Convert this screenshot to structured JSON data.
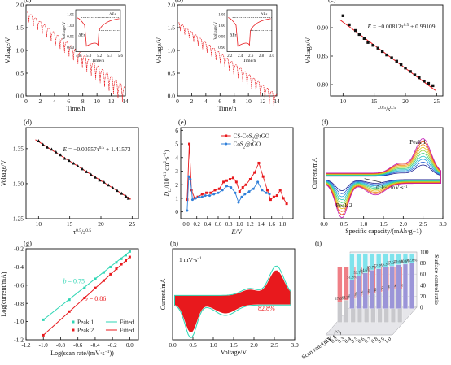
{
  "colors": {
    "red": "#e8191d",
    "teal": "#2fd6b4",
    "blue": "#2f7fd9",
    "black": "#111111",
    "cyan_bar": "#7fe3ec",
    "purple_bar": "#9b95d8",
    "pink_bar": "#ef7f86",
    "grey_bar": "#c8c8cc"
  },
  "chart_data": [
    {
      "panel": "(a)",
      "type": "line",
      "xlabel": "Time/h",
      "ylabel": "Voltage/V",
      "xlim": [
        0,
        14
      ],
      "ylim": [
        0,
        2.0
      ],
      "xticks": [
        0,
        2,
        4,
        6,
        8,
        10,
        12,
        14
      ],
      "yticks": [
        0.0,
        0.5,
        1.0,
        1.5,
        2.0
      ],
      "series": [
        {
          "pulse_count": 22,
          "start_V": 1.85,
          "end_V": 0.2,
          "drop_V": 0.42
        }
      ],
      "inset": {
        "xlabel": "Time/h",
        "ylabel": "Voltage/V",
        "xticks": [
          4.8,
          5.0,
          5.2,
          5.4,
          5.6
        ],
        "yticks": [
          0.9,
          0.95,
          1.0,
          1.05
        ],
        "xlim": [
          4.75,
          5.6
        ],
        "ylim": [
          0.88,
          1.07
        ],
        "annotations": [
          "ΔEτ",
          "ΔEs"
        ]
      }
    },
    {
      "panel": "(b)",
      "type": "line",
      "xlabel": "Time/h",
      "ylabel": "Voltage/V",
      "xlim": [
        0,
        14
      ],
      "ylim": [
        0,
        2.0
      ],
      "xticks": [
        0,
        2,
        4,
        6,
        8,
        10,
        12,
        14
      ],
      "yticks": [
        0.0,
        0.5,
        1.0,
        1.5,
        2.0
      ],
      "series": [
        {
          "pulse_count": 22,
          "start_V": 1.62,
          "end_V": 0.02,
          "drop_V": 0.35
        }
      ],
      "inset": {
        "xlabel": "Time/h",
        "ylabel": "Voltage/V",
        "xticks": [
          2.2,
          2.4,
          2.6,
          2.8,
          3.0
        ],
        "yticks": [
          0.9,
          0.95,
          1.0,
          1.05
        ],
        "xlim": [
          2.15,
          3.0
        ],
        "ylim": [
          0.88,
          1.07
        ],
        "annotations": [
          "ΔEτ",
          "ΔEs"
        ]
      }
    },
    {
      "panel": "(c)",
      "type": "scatter",
      "xlabel": "τ0.5/s0.5",
      "ylabel": "Voltage/V",
      "xlim": [
        8,
        26
      ],
      "ylim": [
        0.78,
        0.94
      ],
      "xticks": [
        10,
        15,
        20,
        25
      ],
      "yticks": [
        0.8,
        0.85,
        0.9
      ],
      "equation": "E = −0.00812τ0.5 + 0.99109",
      "x": [
        10.0,
        11.0,
        12.0,
        12.6,
        13.4,
        14.0,
        14.8,
        15.6,
        16.3,
        17.0,
        17.8,
        18.6,
        19.3,
        20.0,
        20.8,
        21.5,
        22.2,
        23.0,
        23.7,
        24.4
      ],
      "y": [
        0.921,
        0.905,
        0.895,
        0.888,
        0.881,
        0.874,
        0.869,
        0.864,
        0.858,
        0.852,
        0.847,
        0.841,
        0.835,
        0.829,
        0.823,
        0.817,
        0.812,
        0.806,
        0.802,
        0.798
      ],
      "fit": {
        "slope": -0.00812,
        "intercept": 0.99109
      }
    },
    {
      "panel": "(d)",
      "type": "scatter",
      "xlabel": "τ0.5/s0.5",
      "ylabel": "Voltage/V",
      "xlim": [
        8,
        26
      ],
      "ylim": [
        1.25,
        1.38
      ],
      "xticks": [
        10,
        15,
        20,
        25
      ],
      "yticks": [
        1.25,
        1.3,
        1.35
      ],
      "equation": "E = −0.00557τ0.5 + 1.41573",
      "x": [
        10.0,
        10.7,
        11.4,
        12.1,
        12.8,
        13.5,
        14.2,
        14.9,
        15.6,
        16.3,
        17.0,
        17.7,
        18.4,
        19.1,
        19.8,
        20.5,
        21.2,
        21.9,
        22.6,
        23.3,
        24.0,
        24.4
      ],
      "y": [
        1.361,
        1.356,
        1.352,
        1.349,
        1.345,
        1.341,
        1.336,
        1.333,
        1.329,
        1.325,
        1.321,
        1.317,
        1.313,
        1.309,
        1.305,
        1.302,
        1.298,
        1.294,
        1.29,
        1.286,
        1.282,
        1.279
      ],
      "fit": {
        "slope": -0.00557,
        "intercept": 1.41573
      }
    },
    {
      "panel": "(e)",
      "type": "line",
      "xlabel": "E/V",
      "ylabel": "DLi/(10−11 cm2·s−1)",
      "xlim": [
        -0.1,
        2.0
      ],
      "ylim": [
        -0.5,
        6.2
      ],
      "xticks": [
        0.0,
        0.2,
        0.4,
        0.6,
        0.8,
        1.0,
        1.2,
        1.4,
        1.6,
        1.8
      ],
      "yticks": [
        0,
        1,
        2,
        3,
        4,
        5,
        6
      ],
      "series": [
        {
          "name": "CS-CoS2@rGO",
          "x": [
            0.02,
            0.06,
            0.1,
            0.16,
            0.22,
            0.3,
            0.38,
            0.46,
            0.54,
            0.62,
            0.7,
            0.76,
            0.82,
            0.88,
            0.94,
            1.0,
            1.06,
            1.12,
            1.2,
            1.28,
            1.36,
            1.44,
            1.52,
            1.58,
            1.64,
            1.7,
            1.76,
            1.82,
            1.88
          ],
          "y": [
            0.9,
            5.0,
            1.6,
            1.0,
            1.1,
            1.3,
            1.4,
            1.4,
            1.6,
            1.7,
            2.2,
            2.3,
            2.4,
            2.5,
            2.2,
            1.5,
            1.8,
            2.0,
            2.4,
            2.9,
            3.6,
            2.6,
            1.6,
            0.9,
            1.1,
            1.2,
            1.6,
            1.0,
            0.6
          ]
        },
        {
          "name": "CoS2@rGO",
          "x": [
            0.02,
            0.05,
            0.08,
            0.12,
            0.18,
            0.24,
            0.3,
            0.36,
            0.44,
            0.52,
            0.6,
            0.68,
            0.76,
            0.84,
            0.92,
            0.98,
            1.04,
            1.1,
            1.18,
            1.26,
            1.34,
            1.42,
            1.5,
            1.56
          ],
          "y": [
            0.1,
            2.6,
            2.4,
            0.9,
            1.0,
            1.1,
            1.1,
            1.2,
            1.2,
            1.3,
            1.4,
            1.6,
            1.9,
            1.8,
            1.4,
            0.7,
            1.1,
            1.3,
            1.5,
            1.7,
            2.2,
            1.6,
            1.4,
            1.3
          ]
        }
      ],
      "legend": "top-right"
    },
    {
      "panel": "(f)",
      "type": "line",
      "xlabel": "Specific capacity/(mAh·g−1)",
      "ylabel": "Current/mA",
      "xlim": [
        0,
        3.0
      ],
      "xticks": [
        0.0,
        0.5,
        1.0,
        1.5,
        2.0,
        2.5,
        3.0
      ],
      "annotations": [
        "Peak 1",
        "Peak 2",
        "0.1~1 mV·s−1"
      ],
      "series_count": 10
    },
    {
      "panel": "(g)",
      "type": "scatter",
      "xlabel": "Log(scan rate/(mV·s−1))",
      "ylabel": "Log(current/mA)",
      "xlim": [
        -1.2,
        0.1
      ],
      "ylim": [
        -1.2,
        -0.2
      ],
      "xticks": [
        -1.2,
        -1.0,
        -0.8,
        -0.6,
        -0.4,
        -0.2,
        0.0
      ],
      "yticks": [
        -1.2,
        -1.0,
        -0.8,
        -0.6,
        -0.4,
        -0.2
      ],
      "annotations": [
        "b = 0.75",
        "b = 0.86"
      ],
      "series": [
        {
          "name": "Peak 1",
          "x": [
            -1.0,
            -0.699,
            -0.523,
            -0.398,
            -0.301,
            -0.222,
            -0.155,
            -0.097,
            -0.046,
            0.0
          ],
          "y": [
            -0.98,
            -0.76,
            -0.63,
            -0.53,
            -0.46,
            -0.4,
            -0.35,
            -0.31,
            -0.27,
            -0.23
          ]
        },
        {
          "name": "Peak 2",
          "x": [
            -1.0,
            -0.699,
            -0.523,
            -0.398,
            -0.301,
            -0.222,
            -0.155,
            -0.097,
            -0.046,
            0.0
          ],
          "y": [
            -1.15,
            -0.89,
            -0.74,
            -0.63,
            -0.55,
            -0.48,
            -0.42,
            -0.37,
            -0.33,
            -0.29
          ]
        },
        {
          "name": "Fitted"
        },
        {
          "name": "Fitted"
        }
      ],
      "legend": "bottom-right"
    },
    {
      "panel": "(h)",
      "type": "area",
      "xlabel": "Voltage/V",
      "ylabel": "Current/mA",
      "xlim": [
        0,
        3.0
      ],
      "xticks": [
        0.0,
        0.5,
        1.0,
        1.5,
        2.0,
        2.5,
        3.0
      ],
      "annotations": [
        "1 mV·s−1",
        "82.8%"
      ]
    },
    {
      "panel": "(i)",
      "type": "bar",
      "xlabel": "Scan rate/(mV·s−1)",
      "ylabel": "Surface control ratio",
      "categories": [
        "0.1",
        "0.2",
        "0.3",
        "0.4",
        "0.5",
        "0.6",
        "0.7",
        "0.8",
        "0.9",
        "1.0"
      ],
      "yticks": [
        0,
        20,
        40,
        60,
        80,
        100
      ],
      "series": [
        {
          "values": [
            51.8,
            59.7,
            64.6,
            69.7,
            72.0,
            75.3,
            77.3,
            79.6,
            80.6,
            82.8
          ]
        },
        {
          "values": [
            37.6,
            40.3,
            42.9,
            47.1,
            49.8,
            52.0,
            55.0,
            57.1,
            60.3,
            61.0
          ]
        }
      ]
    }
  ]
}
